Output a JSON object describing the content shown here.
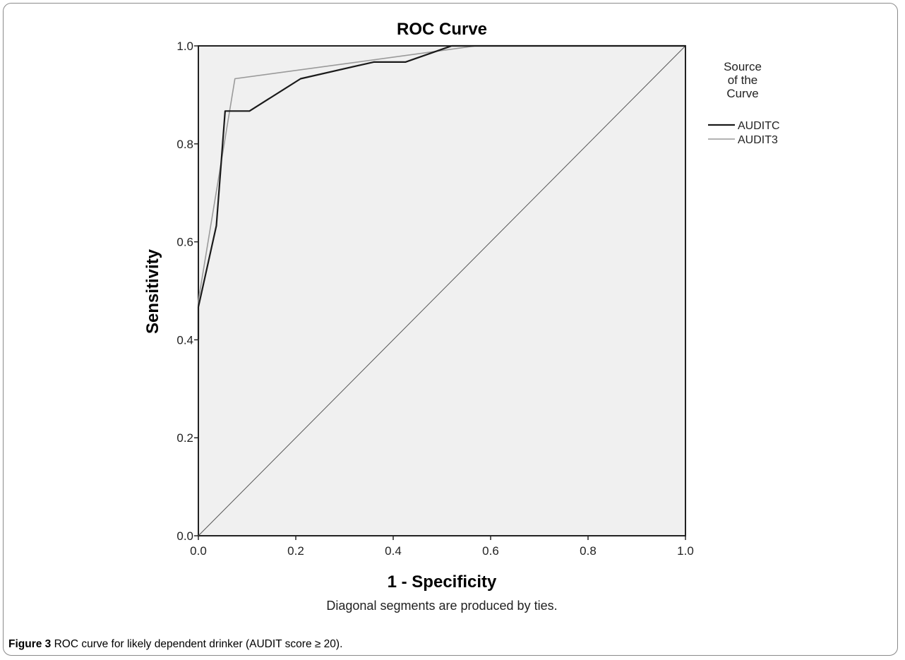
{
  "chart_data": {
    "type": "line",
    "title": "ROC Curve",
    "xlabel": "1 - Specificity",
    "ylabel": "Sensitivity",
    "xlim": [
      0.0,
      1.0
    ],
    "ylim": [
      0.0,
      1.0
    ],
    "xticks": [
      "0.0",
      "0.2",
      "0.4",
      "0.6",
      "0.8",
      "1.0"
    ],
    "yticks": [
      "0.0",
      "0.2",
      "0.4",
      "0.6",
      "0.8",
      "1.0"
    ],
    "grid": false,
    "legend_title": "Source of the Curve",
    "legend_title_lines": [
      "Source",
      "of the",
      "Curve"
    ],
    "legend_position": "right",
    "note": "Diagonal segments are produced by ties.",
    "series": [
      {
        "name": "AUDITC",
        "color": "#1a1a1a",
        "x": [
          0.0,
          0.0,
          0.037,
          0.055,
          0.105,
          0.21,
          0.36,
          0.425,
          0.52,
          0.6,
          1.0
        ],
        "y": [
          0.4,
          0.467,
          0.633,
          0.867,
          0.867,
          0.933,
          0.967,
          0.967,
          1.0,
          1.0,
          1.0
        ]
      },
      {
        "name": "AUDIT3",
        "color": "#9a9a9a",
        "x": [
          0.0,
          0.0,
          0.075,
          0.57,
          1.0
        ],
        "y": [
          0.4,
          0.48,
          0.933,
          1.0,
          1.0
        ]
      }
    ]
  },
  "caption": {
    "label": "Figure 3",
    "text": " ROC curve for likely dependent drinker (AUDIT score ≥ 20)."
  }
}
